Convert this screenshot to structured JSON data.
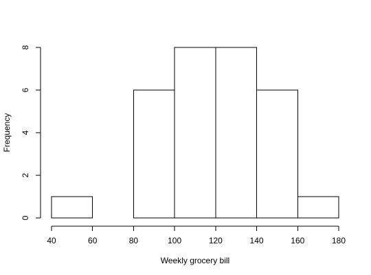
{
  "chart_data": {
    "type": "bar",
    "subtype": "histogram",
    "bins": [
      {
        "start": 40,
        "end": 60,
        "count": 1
      },
      {
        "start": 60,
        "end": 80,
        "count": 0
      },
      {
        "start": 80,
        "end": 100,
        "count": 6
      },
      {
        "start": 100,
        "end": 120,
        "count": 8
      },
      {
        "start": 120,
        "end": 140,
        "count": 8
      },
      {
        "start": 140,
        "end": 160,
        "count": 6
      },
      {
        "start": 160,
        "end": 180,
        "count": 1
      }
    ],
    "xlabel": "Weekly grocery bill",
    "ylabel": "Frequency",
    "xlim": [
      40,
      180
    ],
    "ylim": [
      0,
      8
    ],
    "x_ticks": [
      40,
      60,
      80,
      100,
      120,
      140,
      160,
      180
    ],
    "y_ticks": [
      0,
      2,
      4,
      6,
      8
    ],
    "grid": false,
    "bar_fill": "#ffffff",
    "bar_stroke": "#000000"
  }
}
